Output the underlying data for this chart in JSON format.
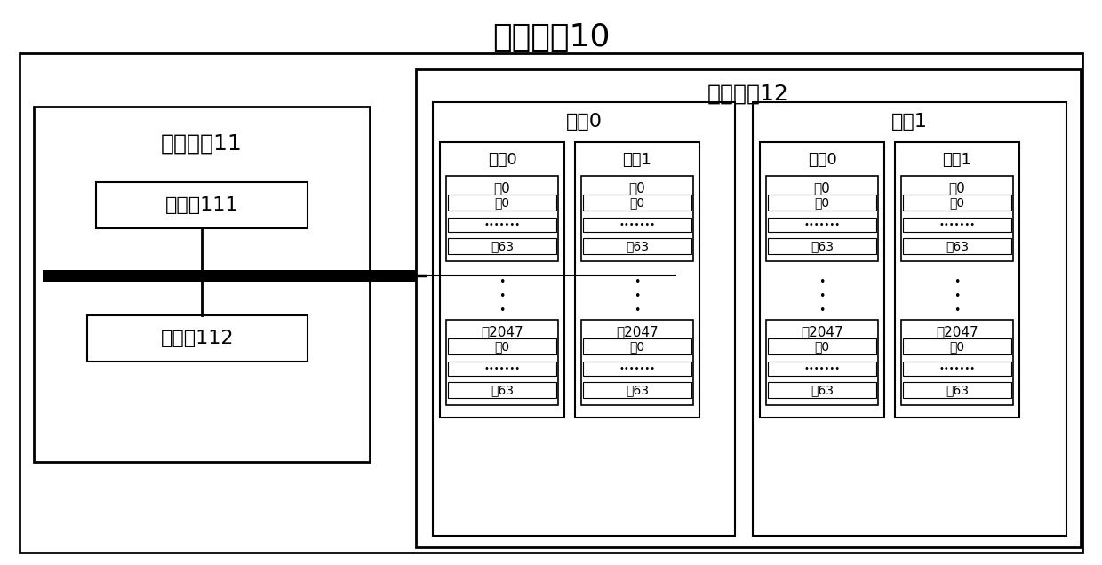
{
  "title": "固态硬盘10",
  "flash_chip_label": "闪存芯片12",
  "main_controller_label": "主控制器11",
  "processor_label": "处理器111",
  "memory_label": "存储器112",
  "die0_label": "晶圆0",
  "die1_label": "晶圆1",
  "group0_label": "分组0",
  "group1_label": "分组1",
  "block0_label": "块0",
  "block2047_label": "块2047",
  "page0_label": "页0",
  "page63_label": "页63",
  "dots_h": "•••••••",
  "dots_v": "•\n•\n•",
  "bg_color": "#ffffff",
  "border_color": "#000000",
  "title_fontsize": 26,
  "label_large": 18,
  "label_medium": 16,
  "label_small": 13,
  "label_tiny": 11
}
